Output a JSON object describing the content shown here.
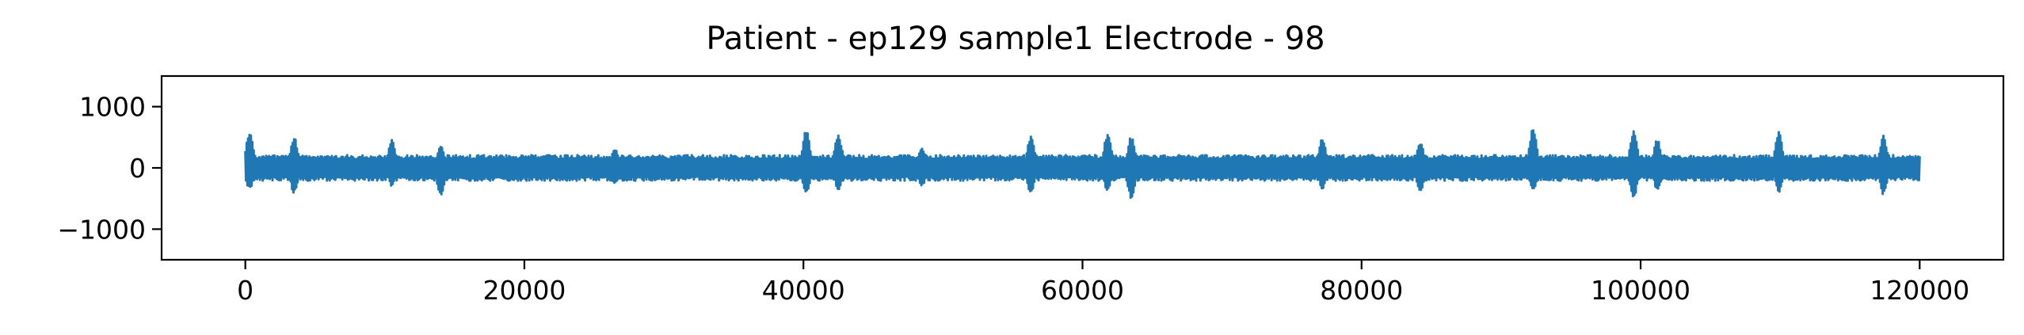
{
  "chart_data": {
    "type": "line",
    "title": "Patient - ep129 sample1 Electrode - 98",
    "xlabel": "",
    "ylabel": "",
    "xlim": [
      -6000,
      126000
    ],
    "ylim": [
      -1500,
      1500
    ],
    "x_ticks": [
      0,
      20000,
      40000,
      60000,
      80000,
      100000,
      120000
    ],
    "x_tick_labels": [
      "0",
      "20000",
      "40000",
      "60000",
      "80000",
      "100000",
      "120000"
    ],
    "y_ticks": [
      1000,
      0,
      -1000
    ],
    "y_tick_labels": [
      "1000",
      "0",
      "−1000"
    ],
    "grid": false,
    "legend": "none",
    "series_color": "#1f77b4",
    "series": [
      {
        "x_range": [
          0,
          120000
        ],
        "baseline_envelope": 190,
        "spikes": [
          {
            "x": 300,
            "max": 600,
            "min": -350
          },
          {
            "x": 3500,
            "max": 500,
            "min": -420
          },
          {
            "x": 10500,
            "max": 480,
            "min": -300
          },
          {
            "x": 14000,
            "max": 380,
            "min": -450
          },
          {
            "x": 26500,
            "max": 320,
            "min": -260
          },
          {
            "x": 40200,
            "max": 660,
            "min": -420
          },
          {
            "x": 42500,
            "max": 580,
            "min": -360
          },
          {
            "x": 48500,
            "max": 330,
            "min": -300
          },
          {
            "x": 56300,
            "max": 520,
            "min": -420
          },
          {
            "x": 61800,
            "max": 580,
            "min": -380
          },
          {
            "x": 63500,
            "max": 520,
            "min": -500
          },
          {
            "x": 77200,
            "max": 500,
            "min": -340
          },
          {
            "x": 84200,
            "max": 440,
            "min": -420
          },
          {
            "x": 92300,
            "max": 660,
            "min": -380
          },
          {
            "x": 99500,
            "max": 620,
            "min": -500
          },
          {
            "x": 101200,
            "max": 470,
            "min": -370
          },
          {
            "x": 109900,
            "max": 600,
            "min": -400
          },
          {
            "x": 117400,
            "max": 530,
            "min": -440
          }
        ]
      }
    ]
  }
}
